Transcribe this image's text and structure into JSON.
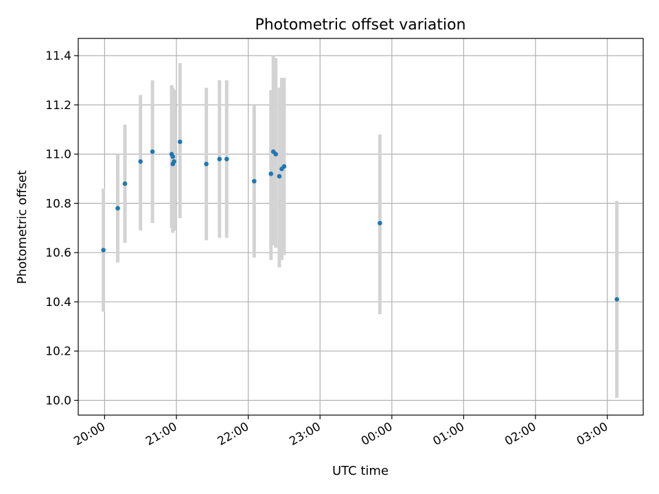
{
  "chart_data": {
    "type": "scatter",
    "title": "Photometric offset variation",
    "xlabel": "UTC time",
    "ylabel": "Photometric offset",
    "x_axis": {
      "kind": "time",
      "ticks": [
        "20:00",
        "21:00",
        "22:00",
        "23:00",
        "00:00",
        "01:00",
        "02:00",
        "03:00"
      ],
      "range": [
        "19:38",
        "03:30"
      ]
    },
    "y_axis": {
      "ticks": [
        "10.0",
        "10.2",
        "10.4",
        "10.6",
        "10.8",
        "11.0",
        "11.2",
        "11.4"
      ],
      "range": [
        9.94,
        11.47
      ]
    },
    "grid": true,
    "colors": {
      "points": "#1f77b4",
      "error_bars": "#d3d3d3",
      "grid": "#b0b0b0"
    },
    "points": [
      {
        "time": "19:59",
        "y": 10.61,
        "lo": 10.36,
        "hi": 10.86
      },
      {
        "time": "20:11",
        "y": 10.78,
        "lo": 10.56,
        "hi": 11.0
      },
      {
        "time": "20:17",
        "y": 10.88,
        "lo": 10.64,
        "hi": 11.12
      },
      {
        "time": "20:30",
        "y": 10.97,
        "lo": 10.69,
        "hi": 11.24
      },
      {
        "time": "20:40",
        "y": 11.01,
        "lo": 10.72,
        "hi": 11.3
      },
      {
        "time": "20:56",
        "y": 11.0,
        "lo": 10.7,
        "hi": 11.28
      },
      {
        "time": "20:57",
        "y": 10.99,
        "lo": 10.71,
        "hi": 11.27
      },
      {
        "time": "20:57",
        "y": 10.96,
        "lo": 10.68,
        "hi": 11.23
      },
      {
        "time": "20:58",
        "y": 10.97,
        "lo": 10.69,
        "hi": 11.26
      },
      {
        "time": "21:03",
        "y": 11.05,
        "lo": 10.74,
        "hi": 11.37
      },
      {
        "time": "21:25",
        "y": 10.96,
        "lo": 10.65,
        "hi": 11.27
      },
      {
        "time": "21:36",
        "y": 10.98,
        "lo": 10.66,
        "hi": 11.3
      },
      {
        "time": "21:42",
        "y": 10.98,
        "lo": 10.66,
        "hi": 11.3
      },
      {
        "time": "22:05",
        "y": 10.89,
        "lo": 10.58,
        "hi": 11.2
      },
      {
        "time": "22:19",
        "y": 10.92,
        "lo": 10.57,
        "hi": 11.26
      },
      {
        "time": "22:21",
        "y": 11.01,
        "lo": 10.63,
        "hi": 11.4
      },
      {
        "time": "22:23",
        "y": 11.0,
        "lo": 10.62,
        "hi": 11.39
      },
      {
        "time": "22:26",
        "y": 10.91,
        "lo": 10.54,
        "hi": 11.27
      },
      {
        "time": "22:28",
        "y": 10.94,
        "lo": 10.57,
        "hi": 11.31
      },
      {
        "time": "22:30",
        "y": 10.95,
        "lo": 10.59,
        "hi": 11.31
      },
      {
        "time": "23:50",
        "y": 10.72,
        "lo": 10.35,
        "hi": 11.08
      },
      {
        "time": "03:08",
        "y": 10.41,
        "lo": 10.01,
        "hi": 10.81
      }
    ]
  }
}
